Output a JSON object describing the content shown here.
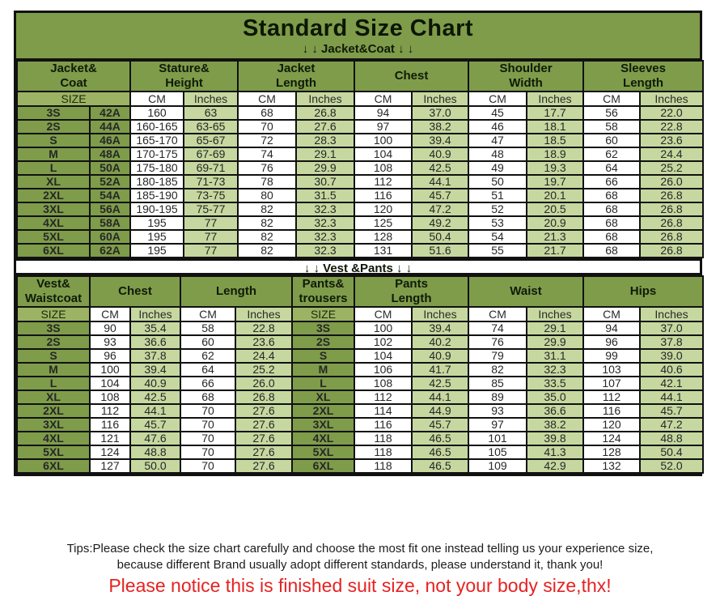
{
  "page": {
    "title": "Standard Size Chart",
    "footer": {
      "tips_line1": "Tips:Please check the size chart carefully and choose the most fit one instead telling us your experience size,",
      "tips_line2": "because different Brand usually adopt different standards, please understand it, thank you!",
      "notice": "Please notice this is finished suit size, not your body size,thx!"
    },
    "colors": {
      "header_olive": "#7e9c4a",
      "size_row_olive": "#9cb363",
      "inches_cell_green": "#c6d89f",
      "cm_cell_white": "#ffffff",
      "notice_red": "#e62222",
      "border_black": "#111111"
    },
    "icons": {
      "down_arrow": "↓"
    }
  },
  "chart_data": [
    {
      "type": "table",
      "section_banner": "↓ ↓  Jacket&Coat ↓ ↓",
      "column_groups": [
        {
          "label": "Jacket&\nCoat",
          "span": 2
        },
        {
          "label": "Stature&\nHeight",
          "span": 2
        },
        {
          "label": "Jacket\nLength",
          "span": 2
        },
        {
          "label": "Chest",
          "span": 2
        },
        {
          "label": "Shoulder\nWidth",
          "span": 2
        },
        {
          "label": "Sleeves\nLength",
          "span": 2
        }
      ],
      "unit_row": [
        "SIZE",
        "CM",
        "Inches",
        "CM",
        "Inches",
        "CM",
        "Inches",
        "CM",
        "Inches",
        "CM",
        "Inches"
      ],
      "rows": [
        [
          "3S",
          "42A",
          "160",
          "63",
          "68",
          "26.8",
          "94",
          "37.0",
          "45",
          "17.7",
          "56",
          "22.0"
        ],
        [
          "2S",
          "44A",
          "160-165",
          "63-65",
          "70",
          "27.6",
          "97",
          "38.2",
          "46",
          "18.1",
          "58",
          "22.8"
        ],
        [
          "S",
          "46A",
          "165-170",
          "65-67",
          "72",
          "28.3",
          "100",
          "39.4",
          "47",
          "18.5",
          "60",
          "23.6"
        ],
        [
          "M",
          "48A",
          "170-175",
          "67-69",
          "74",
          "29.1",
          "104",
          "40.9",
          "48",
          "18.9",
          "62",
          "24.4"
        ],
        [
          "L",
          "50A",
          "175-180",
          "69-71",
          "76",
          "29.9",
          "108",
          "42.5",
          "49",
          "19.3",
          "64",
          "25.2"
        ],
        [
          "XL",
          "52A",
          "180-185",
          "71-73",
          "78",
          "30.7",
          "112",
          "44.1",
          "50",
          "19.7",
          "66",
          "26.0"
        ],
        [
          "2XL",
          "54A",
          "185-190",
          "73-75",
          "80",
          "31.5",
          "116",
          "45.7",
          "51",
          "20.1",
          "68",
          "26.8"
        ],
        [
          "3XL",
          "56A",
          "190-195",
          "75-77",
          "82",
          "32.3",
          "120",
          "47.2",
          "52",
          "20.5",
          "68",
          "26.8"
        ],
        [
          "4XL",
          "58A",
          "195",
          "77",
          "82",
          "32.3",
          "125",
          "49.2",
          "53",
          "20.9",
          "68",
          "26.8"
        ],
        [
          "5XL",
          "60A",
          "195",
          "77",
          "82",
          "32.3",
          "128",
          "50.4",
          "54",
          "21.3",
          "68",
          "26.8"
        ],
        [
          "6XL",
          "62A",
          "195",
          "77",
          "82",
          "32.3",
          "131",
          "51.6",
          "55",
          "21.7",
          "68",
          "26.8"
        ]
      ]
    },
    {
      "type": "table",
      "section_banner": "↓ ↓  Vest &Pants ↓ ↓",
      "column_groups": [
        {
          "label": "Vest&\nWaistcoat",
          "span": 1
        },
        {
          "label": "Chest",
          "span": 2
        },
        {
          "label": "Length",
          "span": 2
        },
        {
          "label": "Pants&\ntrousers",
          "span": 1
        },
        {
          "label": "Pants\nLength",
          "span": 2
        },
        {
          "label": "Waist",
          "span": 2
        },
        {
          "label": "Hips",
          "span": 2
        }
      ],
      "unit_row": [
        "SIZE",
        "CM",
        "Inches",
        "CM",
        "Inches",
        "SIZE",
        "CM",
        "Inches",
        "CM",
        "Inches",
        "CM",
        "Inches"
      ],
      "rows": [
        [
          "3S",
          "90",
          "35.4",
          "58",
          "22.8",
          "3S",
          "100",
          "39.4",
          "74",
          "29.1",
          "94",
          "37.0"
        ],
        [
          "2S",
          "93",
          "36.6",
          "60",
          "23.6",
          "2S",
          "102",
          "40.2",
          "76",
          "29.9",
          "96",
          "37.8"
        ],
        [
          "S",
          "96",
          "37.8",
          "62",
          "24.4",
          "S",
          "104",
          "40.9",
          "79",
          "31.1",
          "99",
          "39.0"
        ],
        [
          "M",
          "100",
          "39.4",
          "64",
          "25.2",
          "M",
          "106",
          "41.7",
          "82",
          "32.3",
          "103",
          "40.6"
        ],
        [
          "L",
          "104",
          "40.9",
          "66",
          "26.0",
          "L",
          "108",
          "42.5",
          "85",
          "33.5",
          "107",
          "42.1"
        ],
        [
          "XL",
          "108",
          "42.5",
          "68",
          "26.8",
          "XL",
          "112",
          "44.1",
          "89",
          "35.0",
          "112",
          "44.1"
        ],
        [
          "2XL",
          "112",
          "44.1",
          "70",
          "27.6",
          "2XL",
          "114",
          "44.9",
          "93",
          "36.6",
          "116",
          "45.7"
        ],
        [
          "3XL",
          "116",
          "45.7",
          "70",
          "27.6",
          "3XL",
          "116",
          "45.7",
          "97",
          "38.2",
          "120",
          "47.2"
        ],
        [
          "4XL",
          "121",
          "47.6",
          "70",
          "27.6",
          "4XL",
          "118",
          "46.5",
          "101",
          "39.8",
          "124",
          "48.8"
        ],
        [
          "5XL",
          "124",
          "48.8",
          "70",
          "27.6",
          "5XL",
          "118",
          "46.5",
          "105",
          "41.3",
          "128",
          "50.4"
        ],
        [
          "6XL",
          "127",
          "50.0",
          "70",
          "27.6",
          "6XL",
          "118",
          "46.5",
          "109",
          "42.9",
          "132",
          "52.0"
        ]
      ]
    }
  ]
}
